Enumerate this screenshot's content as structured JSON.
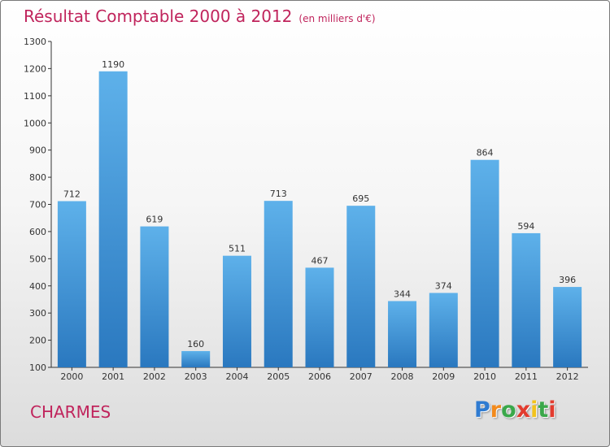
{
  "chart_data": {
    "type": "bar",
    "title": "Résultat Comptable 2000 à 2012",
    "subtitle": "(en milliers d'€)",
    "categories": [
      "2000",
      "2001",
      "2002",
      "2003",
      "2004",
      "2005",
      "2006",
      "2007",
      "2008",
      "2009",
      "2010",
      "2011",
      "2012"
    ],
    "values": [
      712,
      1190,
      619,
      160,
      511,
      713,
      467,
      695,
      344,
      374,
      864,
      594,
      396
    ],
    "ylim": [
      100,
      1300
    ],
    "yticks": [
      100,
      200,
      300,
      400,
      500,
      600,
      700,
      800,
      900,
      1000,
      1100,
      1200,
      1300
    ],
    "grid": false,
    "bar_color": "#3f92d6"
  },
  "location_label": "CHARMES",
  "logo": {
    "letters": [
      "P",
      "r",
      "o",
      "x",
      "i",
      "t",
      "i"
    ],
    "colors": [
      "#2f7bd1",
      "#f28a1c",
      "#3aa84a",
      "#e23b2e",
      "#f2c21c",
      "#3aa84a",
      "#e23b2e"
    ]
  },
  "colors": {
    "title": "#c0245c",
    "axis": "#333333"
  }
}
